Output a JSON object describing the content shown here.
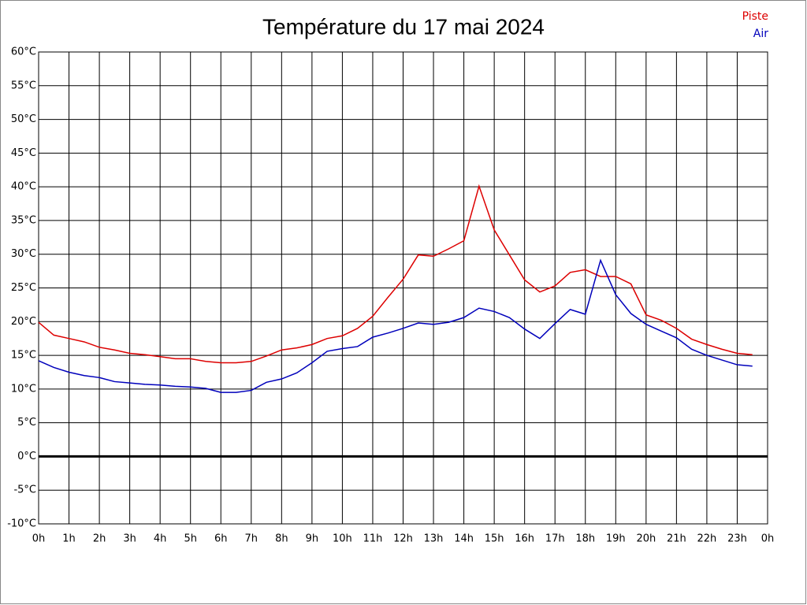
{
  "chart_data": {
    "type": "line",
    "title": "Température du 17 mai 2024",
    "x": [
      0,
      0.5,
      1,
      1.5,
      2,
      2.5,
      3,
      3.5,
      4,
      4.5,
      5,
      5.5,
      6,
      6.5,
      7,
      7.5,
      8,
      8.5,
      9,
      9.5,
      10,
      10.5,
      11,
      11.5,
      12,
      12.5,
      13,
      13.5,
      14,
      14.5,
      15,
      15.5,
      16,
      16.5,
      17,
      17.5,
      18,
      18.5,
      19,
      19.5,
      20,
      20.5,
      21,
      21.5,
      22,
      22.5,
      23,
      23.5
    ],
    "series": [
      {
        "name": "Piste",
        "color": "#dd0000",
        "values": [
          19.9,
          18.0,
          17.5,
          17.0,
          16.2,
          15.8,
          15.3,
          15.1,
          14.8,
          14.5,
          14.5,
          14.1,
          13.9,
          13.9,
          14.1,
          14.9,
          15.8,
          16.1,
          16.6,
          17.5,
          17.9,
          19.0,
          20.8,
          23.6,
          26.3,
          29.9,
          29.7,
          30.8,
          32.0,
          40.1,
          33.6,
          29.9,
          26.2,
          24.4,
          25.3,
          27.3,
          27.7,
          26.7,
          26.7,
          25.6,
          21.0,
          20.2,
          19.0,
          17.4,
          16.6,
          15.9,
          15.3,
          15.1
        ]
      },
      {
        "name": "Air",
        "color": "#0000bb",
        "values": [
          14.2,
          13.2,
          12.5,
          12.0,
          11.7,
          11.1,
          10.9,
          10.7,
          10.6,
          10.4,
          10.3,
          10.1,
          9.5,
          9.5,
          9.8,
          11.0,
          11.5,
          12.4,
          13.9,
          15.6,
          16.0,
          16.3,
          17.7,
          18.3,
          19.0,
          19.8,
          19.6,
          19.9,
          20.6,
          22.0,
          21.5,
          20.6,
          18.9,
          17.5,
          19.7,
          21.8,
          21.1,
          29.1,
          24.0,
          21.2,
          19.6,
          18.6,
          17.6,
          15.9,
          15.0,
          14.3,
          13.6,
          13.4
        ]
      }
    ],
    "xlim": [
      0,
      24
    ],
    "xticks": [
      {
        "value": 0,
        "label": "0h"
      },
      {
        "value": 1,
        "label": "1h"
      },
      {
        "value": 2,
        "label": "2h"
      },
      {
        "value": 3,
        "label": "3h"
      },
      {
        "value": 4,
        "label": "4h"
      },
      {
        "value": 5,
        "label": "5h"
      },
      {
        "value": 6,
        "label": "6h"
      },
      {
        "value": 7,
        "label": "7h"
      },
      {
        "value": 8,
        "label": "8h"
      },
      {
        "value": 9,
        "label": "9h"
      },
      {
        "value": 10,
        "label": "10h"
      },
      {
        "value": 11,
        "label": "11h"
      },
      {
        "value": 12,
        "label": "12h"
      },
      {
        "value": 13,
        "label": "13h"
      },
      {
        "value": 14,
        "label": "14h"
      },
      {
        "value": 15,
        "label": "15h"
      },
      {
        "value": 16,
        "label": "16h"
      },
      {
        "value": 17,
        "label": "17h"
      },
      {
        "value": 18,
        "label": "18h"
      },
      {
        "value": 19,
        "label": "19h"
      },
      {
        "value": 20,
        "label": "20h"
      },
      {
        "value": 21,
        "label": "21h"
      },
      {
        "value": 22,
        "label": "22h"
      },
      {
        "value": 23,
        "label": "23h"
      },
      {
        "value": 24,
        "label": "0h"
      }
    ],
    "ylim": [
      -10,
      60
    ],
    "yticks": [
      {
        "value": -10,
        "label": "-10°C"
      },
      {
        "value": -5,
        "label": "-5°C"
      },
      {
        "value": 0,
        "label": "0°C"
      },
      {
        "value": 5,
        "label": "5°C"
      },
      {
        "value": 10,
        "label": "10°C"
      },
      {
        "value": 15,
        "label": "15°C"
      },
      {
        "value": 20,
        "label": "20°C"
      },
      {
        "value": 25,
        "label": "25°C"
      },
      {
        "value": 30,
        "label": "30°C"
      },
      {
        "value": 35,
        "label": "35°C"
      },
      {
        "value": 40,
        "label": "40°C"
      },
      {
        "value": 45,
        "label": "45°C"
      },
      {
        "value": 50,
        "label": "50°C"
      },
      {
        "value": 55,
        "label": "55°C"
      },
      {
        "value": 60,
        "label": "60°C"
      }
    ],
    "grid": true,
    "zero_line": true,
    "legend": "top-right"
  }
}
